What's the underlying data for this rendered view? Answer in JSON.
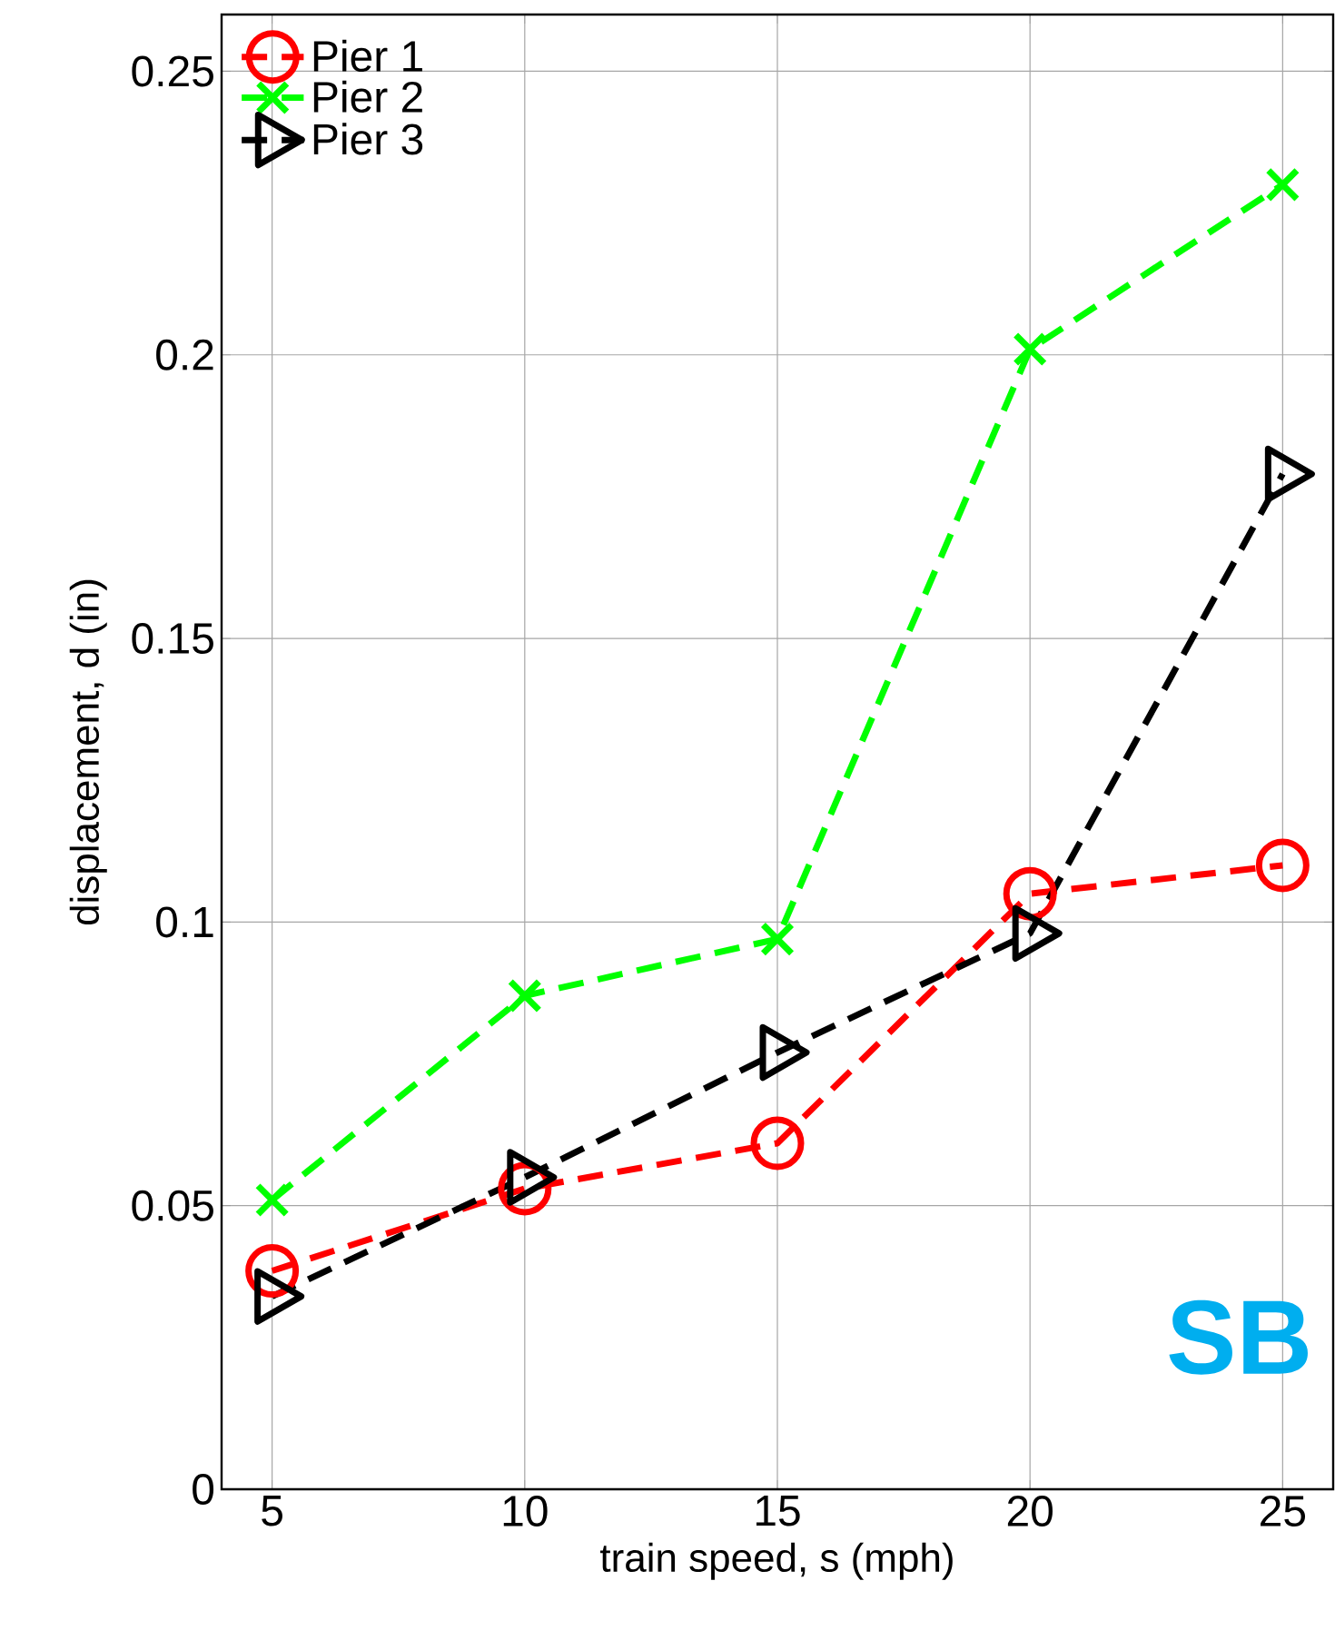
{
  "chart_data": {
    "type": "line",
    "xlabel": "train speed, s (mph)",
    "ylabel": "displacement, d (in)",
    "x": [
      5,
      10,
      15,
      20,
      25
    ],
    "series": [
      {
        "name": "Pier 1",
        "color": "#ff0000",
        "marker": "circle",
        "values": [
          0.0385,
          0.053,
          0.061,
          0.105,
          0.11
        ]
      },
      {
        "name": "Pier 2",
        "color": "#00ff00",
        "marker": "cross",
        "values": [
          0.051,
          0.087,
          0.097,
          0.201,
          0.23
        ]
      },
      {
        "name": "Pier 3",
        "color": "#000000",
        "marker": "triangle",
        "values": [
          0.034,
          0.055,
          0.077,
          0.098,
          0.179
        ]
      }
    ],
    "xlim": [
      4,
      26
    ],
    "ylim": [
      0,
      0.26
    ],
    "xticks": [
      5,
      10,
      15,
      20,
      25
    ],
    "yticks": [
      0,
      0.05,
      0.1,
      0.15,
      0.2,
      0.25
    ],
    "grid": true,
    "legend": "top left",
    "line_style": "dashed",
    "annotations": [
      "SB"
    ]
  }
}
